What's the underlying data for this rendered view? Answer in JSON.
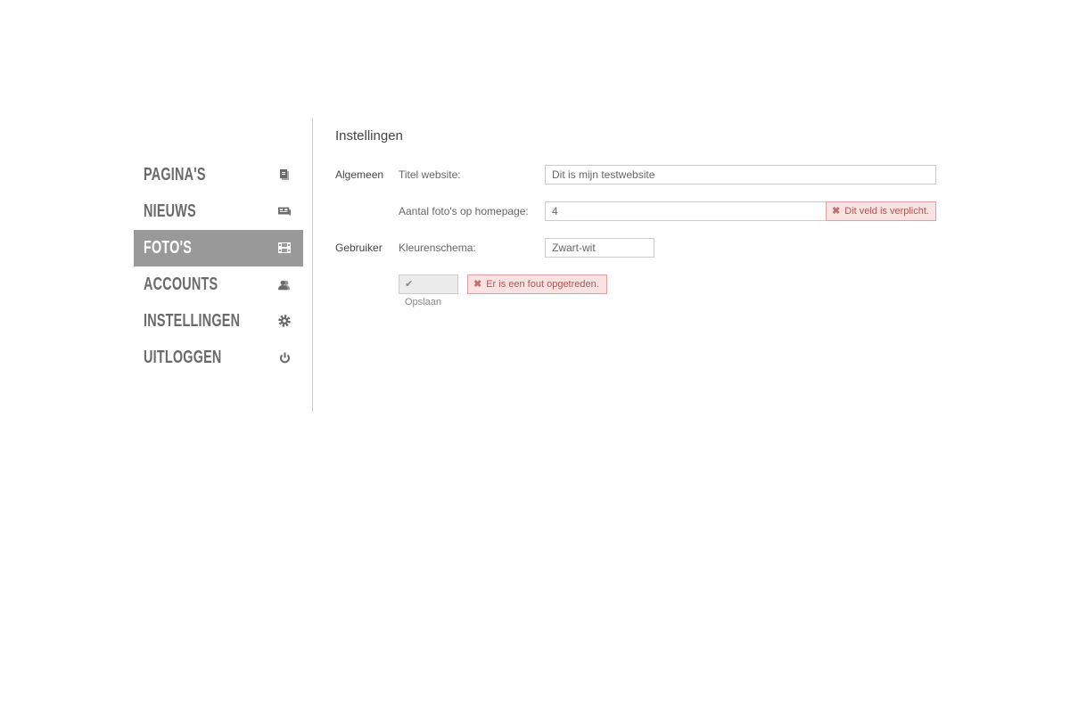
{
  "sidebar": {
    "items": [
      {
        "label": "PAGINA'S",
        "icon": "pages-icon",
        "active": false
      },
      {
        "label": "NIEUWS",
        "icon": "news-icon",
        "active": false
      },
      {
        "label": "FOTO'S",
        "icon": "film-icon",
        "active": true
      },
      {
        "label": "ACCOUNTS",
        "icon": "users-icon",
        "active": false
      },
      {
        "label": "INSTELLINGEN",
        "icon": "gear-icon",
        "active": false
      },
      {
        "label": "UITLOGGEN",
        "icon": "power-icon",
        "active": false
      }
    ]
  },
  "main": {
    "title": "Instellingen",
    "groups": {
      "general": "Algemeen",
      "user": "Gebruiker"
    },
    "fields": {
      "site_title": {
        "label": "Titel website:",
        "value": "Dit is mijn testwebsite"
      },
      "photo_count": {
        "label": "Aantal foto's op homepage:",
        "value": "4",
        "error": "Dit veld is verplicht."
      },
      "color_scheme": {
        "label": "Kleurenschema:",
        "value": "Zwart-wit"
      }
    },
    "save_label": "Opslaan",
    "form_error": "Er is een fout opgetreden."
  },
  "colors": {
    "active_nav": "#999999",
    "error_bg": "#f9e2e2",
    "error_text": "#b05555"
  }
}
